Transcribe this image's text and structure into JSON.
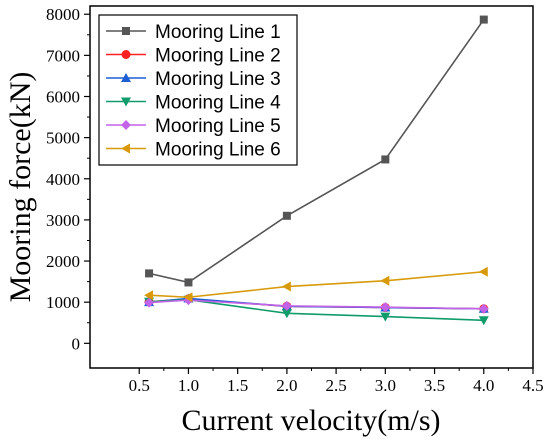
{
  "chart_data": {
    "type": "line",
    "xlabel": "Current velocity(m/s)",
    "ylabel": "Mooring force(kN)",
    "xlim": [
      0,
      4.5
    ],
    "ylim": [
      -600,
      8200
    ],
    "x_ticks": [
      0.5,
      1.0,
      1.5,
      2.0,
      2.5,
      3.0,
      3.5,
      4.0,
      4.5
    ],
    "x_tick_labels": [
      "0.5",
      "1.0",
      "1.5",
      "2.0",
      "2.5",
      "3.0",
      "3.5",
      "4.0",
      "4.5"
    ],
    "y_ticks": [
      0,
      1000,
      2000,
      3000,
      4000,
      5000,
      6000,
      7000,
      8000
    ],
    "y_tick_labels": [
      "0",
      "1000",
      "2000",
      "3000",
      "4000",
      "5000",
      "6000",
      "7000",
      "8000"
    ],
    "x": [
      0.6,
      1.0,
      2.0,
      3.0,
      4.0
    ],
    "legend_position": "top-left",
    "grid": false,
    "series": [
      {
        "name": "Mooring Line 1",
        "color": "#555555",
        "marker": "square",
        "values": [
          1700,
          1480,
          3100,
          4470,
          7870
        ]
      },
      {
        "name": "Mooring Line 2",
        "color": "#ff2020",
        "marker": "circle",
        "values": [
          1010,
          1080,
          900,
          870,
          840
        ]
      },
      {
        "name": "Mooring Line 3",
        "color": "#1f5fd6",
        "marker": "triangle-up",
        "values": [
          1000,
          1090,
          900,
          870,
          840
        ]
      },
      {
        "name": "Mooring Line 4",
        "color": "#109c6a",
        "marker": "triangle-down",
        "values": [
          1010,
          1060,
          730,
          650,
          560
        ]
      },
      {
        "name": "Mooring Line 5",
        "color": "#c263e8",
        "marker": "diamond",
        "values": [
          990,
          1050,
          910,
          880,
          840
        ]
      },
      {
        "name": "Mooring Line 6",
        "color": "#d89a0a",
        "marker": "triangle-left",
        "values": [
          1170,
          1120,
          1380,
          1520,
          1740
        ]
      }
    ]
  }
}
